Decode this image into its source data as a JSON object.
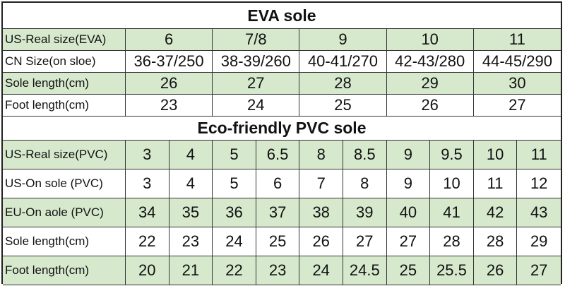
{
  "eva": {
    "title": "EVA sole",
    "rows": [
      [
        "US-Real size(EVA)",
        "6",
        "7/8",
        "9",
        "10",
        "11"
      ],
      [
        "CN Size(on sloe)",
        "36-37/250",
        "38-39/260",
        "40-41/270",
        "42-43/280",
        "44-45/290"
      ],
      [
        "Sole length(cm)",
        "26",
        "27",
        "28",
        "29",
        "30"
      ],
      [
        "Foot length(cm)",
        "23",
        "24",
        "25",
        "26",
        "27"
      ]
    ]
  },
  "pvc": {
    "title": "Eco-friendly PVC sole",
    "rows": [
      [
        "US-Real size(PVC)",
        "3",
        "4",
        "5",
        "6.5",
        "8",
        "8.5",
        "9",
        "9.5",
        "10",
        "11"
      ],
      [
        "US-On sole (PVC)",
        "3",
        "4",
        "5",
        "6",
        "7",
        "8",
        "9",
        "10",
        "11",
        "12"
      ],
      [
        "EU-On aole (PVC)",
        "34",
        "35",
        "36",
        "37",
        "38",
        "39",
        "40",
        "41",
        "42",
        "43"
      ],
      [
        "Sole length(cm)",
        "22",
        "23",
        "24",
        "25",
        "26",
        "27",
        "27",
        "28",
        "28",
        "29"
      ],
      [
        "Foot length(cm)",
        "20",
        "21",
        "22",
        "23",
        "24",
        "24.5",
        "25",
        "25.5",
        "26",
        "27"
      ]
    ]
  }
}
